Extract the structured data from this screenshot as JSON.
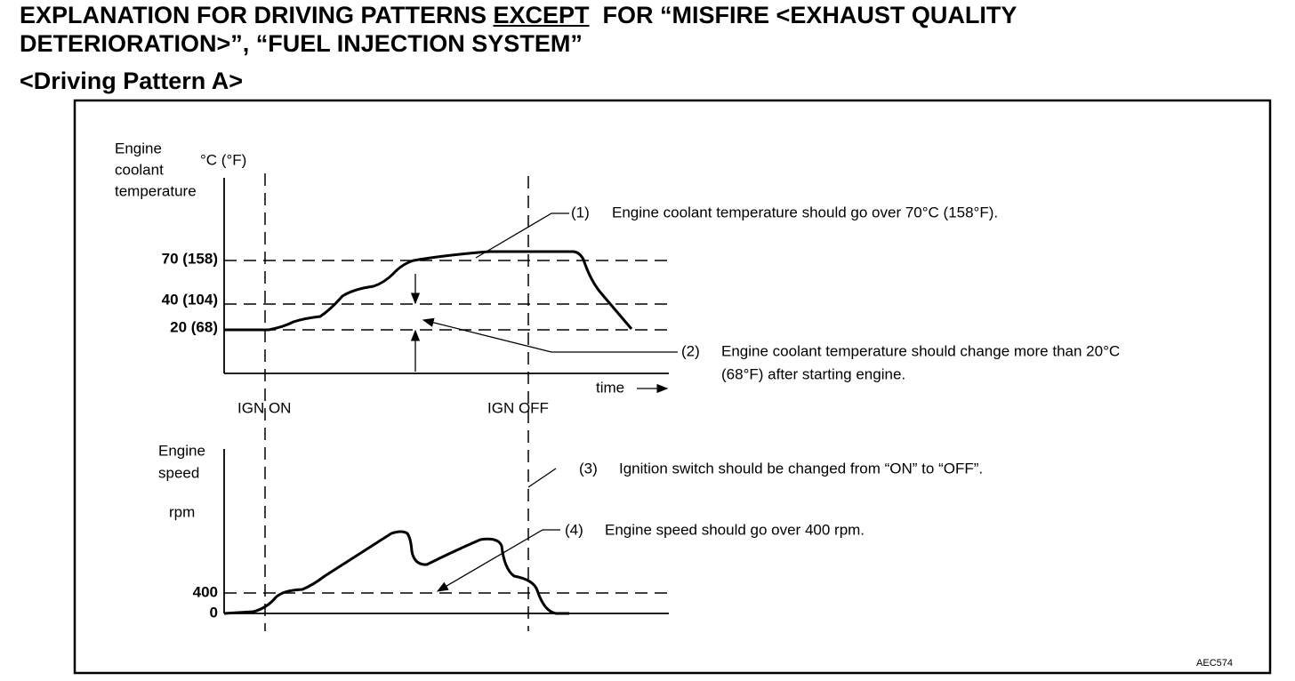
{
  "header": {
    "title_start": "EXPLANATION FOR DRIVING PATTERNS ",
    "title_emphasis": "EXCEPT",
    "title_end": "  FOR “MISFIRE <EXHAUST QUALITY",
    "title_line2": "DETERIORATION>”, “FUEL INJECTION SYSTEM”",
    "subtitle": "<Driving Pattern A>"
  },
  "diagram": {
    "temp_axis_label": [
      "Engine",
      "coolant",
      "temperature"
    ],
    "temp_unit": "°C (°F)",
    "temp_ticks": [
      "70 (158)",
      "40 (104)",
      "20 (68)"
    ],
    "time_label": "time",
    "ign_on": "IGN ON",
    "ign_off": "IGN OFF",
    "speed_axis_label": [
      "Engine",
      "speed"
    ],
    "speed_unit": "rpm",
    "speed_ticks": [
      "400",
      "0"
    ],
    "notes": [
      {
        "number": "(1)",
        "lines": [
          "Engine coolant temperature should go over 70°C (158°F)."
        ]
      },
      {
        "number": "(2)",
        "lines": [
          "Engine coolant temperature should change more than 20°C",
          "(68°F) after starting engine."
        ]
      },
      {
        "number": "(3)",
        "lines": [
          "Ignition switch should be changed from “ON” to “OFF”."
        ]
      },
      {
        "number": "(4)",
        "lines": [
          "Engine speed should go over 400 rpm."
        ]
      }
    ],
    "figure_id": "AEC574"
  }
}
